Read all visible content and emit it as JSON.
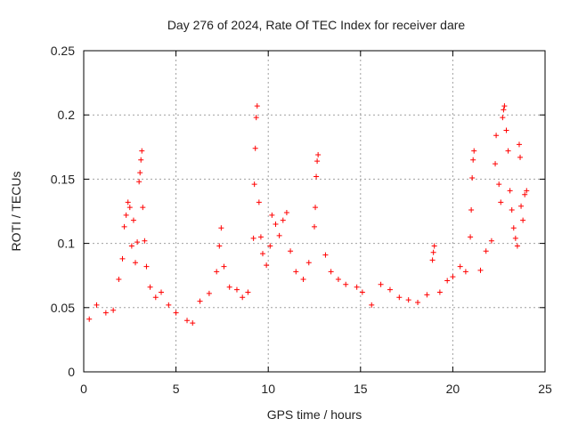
{
  "chart_data": {
    "type": "scatter",
    "title": "Day 276 of 2024, Rate Of TEC Index for receiver dare",
    "xlabel": "GPS time / hours",
    "ylabel": "ROTI / TECUs",
    "xlim": [
      0,
      25
    ],
    "ylim": [
      0,
      0.25
    ],
    "xticks": [
      0,
      5,
      10,
      15,
      20,
      25
    ],
    "yticks": [
      0,
      0.05,
      0.1,
      0.15,
      0.2,
      0.25
    ],
    "xtick_labels": [
      "0",
      "5",
      "10",
      "15",
      "20",
      "25"
    ],
    "ytick_labels": [
      "0",
      "0.05",
      "0.1",
      "0.15",
      "0.2",
      "0.25"
    ],
    "grid": true,
    "marker": "+",
    "color": "#ff0000",
    "series": [
      {
        "name": "",
        "points": [
          [
            0.3,
            0.041
          ],
          [
            0.7,
            0.052
          ],
          [
            1.2,
            0.046
          ],
          [
            1.6,
            0.048
          ],
          [
            1.9,
            0.072
          ],
          [
            2.1,
            0.088
          ],
          [
            2.2,
            0.113
          ],
          [
            2.3,
            0.122
          ],
          [
            2.4,
            0.132
          ],
          [
            2.5,
            0.128
          ],
          [
            2.6,
            0.098
          ],
          [
            2.7,
            0.118
          ],
          [
            2.8,
            0.085
          ],
          [
            2.9,
            0.101
          ],
          [
            3.0,
            0.148
          ],
          [
            3.05,
            0.155
          ],
          [
            3.1,
            0.165
          ],
          [
            3.15,
            0.172
          ],
          [
            3.2,
            0.128
          ],
          [
            3.3,
            0.102
          ],
          [
            3.4,
            0.082
          ],
          [
            3.6,
            0.066
          ],
          [
            3.9,
            0.058
          ],
          [
            4.2,
            0.062
          ],
          [
            4.6,
            0.052
          ],
          [
            5.0,
            0.046
          ],
          [
            5.6,
            0.04
          ],
          [
            5.9,
            0.038
          ],
          [
            6.3,
            0.055
          ],
          [
            6.8,
            0.061
          ],
          [
            7.2,
            0.078
          ],
          [
            7.35,
            0.098
          ],
          [
            7.45,
            0.112
          ],
          [
            7.6,
            0.082
          ],
          [
            7.9,
            0.066
          ],
          [
            8.3,
            0.064
          ],
          [
            8.6,
            0.058
          ],
          [
            8.9,
            0.062
          ],
          [
            9.2,
            0.104
          ],
          [
            9.25,
            0.146
          ],
          [
            9.3,
            0.174
          ],
          [
            9.35,
            0.198
          ],
          [
            9.4,
            0.207
          ],
          [
            9.5,
            0.132
          ],
          [
            9.6,
            0.105
          ],
          [
            9.7,
            0.092
          ],
          [
            9.9,
            0.083
          ],
          [
            10.1,
            0.098
          ],
          [
            10.2,
            0.122
          ],
          [
            10.4,
            0.115
          ],
          [
            10.6,
            0.106
          ],
          [
            10.8,
            0.118
          ],
          [
            11.0,
            0.124
          ],
          [
            11.2,
            0.094
          ],
          [
            11.5,
            0.078
          ],
          [
            11.9,
            0.072
          ],
          [
            12.2,
            0.085
          ],
          [
            12.5,
            0.113
          ],
          [
            12.55,
            0.128
          ],
          [
            12.6,
            0.152
          ],
          [
            12.65,
            0.164
          ],
          [
            12.7,
            0.169
          ],
          [
            13.1,
            0.091
          ],
          [
            13.4,
            0.078
          ],
          [
            13.8,
            0.072
          ],
          [
            14.2,
            0.068
          ],
          [
            14.8,
            0.066
          ],
          [
            15.1,
            0.062
          ],
          [
            15.6,
            0.052
          ],
          [
            16.1,
            0.068
          ],
          [
            16.6,
            0.064
          ],
          [
            17.1,
            0.058
          ],
          [
            17.6,
            0.056
          ],
          [
            18.1,
            0.054
          ],
          [
            18.6,
            0.06
          ],
          [
            18.9,
            0.087
          ],
          [
            18.95,
            0.093
          ],
          [
            19.0,
            0.098
          ],
          [
            19.3,
            0.062
          ],
          [
            19.7,
            0.071
          ],
          [
            20.0,
            0.074
          ],
          [
            20.4,
            0.082
          ],
          [
            20.7,
            0.078
          ],
          [
            20.95,
            0.105
          ],
          [
            21.0,
            0.126
          ],
          [
            21.05,
            0.151
          ],
          [
            21.1,
            0.165
          ],
          [
            21.15,
            0.172
          ],
          [
            21.5,
            0.079
          ],
          [
            21.8,
            0.094
          ],
          [
            22.1,
            0.102
          ],
          [
            22.3,
            0.162
          ],
          [
            22.35,
            0.184
          ],
          [
            22.5,
            0.146
          ],
          [
            22.6,
            0.132
          ],
          [
            22.7,
            0.198
          ],
          [
            22.75,
            0.204
          ],
          [
            22.8,
            0.207
          ],
          [
            22.9,
            0.188
          ],
          [
            23.0,
            0.172
          ],
          [
            23.1,
            0.141
          ],
          [
            23.2,
            0.126
          ],
          [
            23.3,
            0.112
          ],
          [
            23.4,
            0.104
          ],
          [
            23.5,
            0.098
          ],
          [
            23.6,
            0.177
          ],
          [
            23.65,
            0.167
          ],
          [
            23.7,
            0.129
          ],
          [
            23.8,
            0.118
          ],
          [
            23.9,
            0.138
          ],
          [
            24.0,
            0.141
          ]
        ]
      }
    ]
  }
}
